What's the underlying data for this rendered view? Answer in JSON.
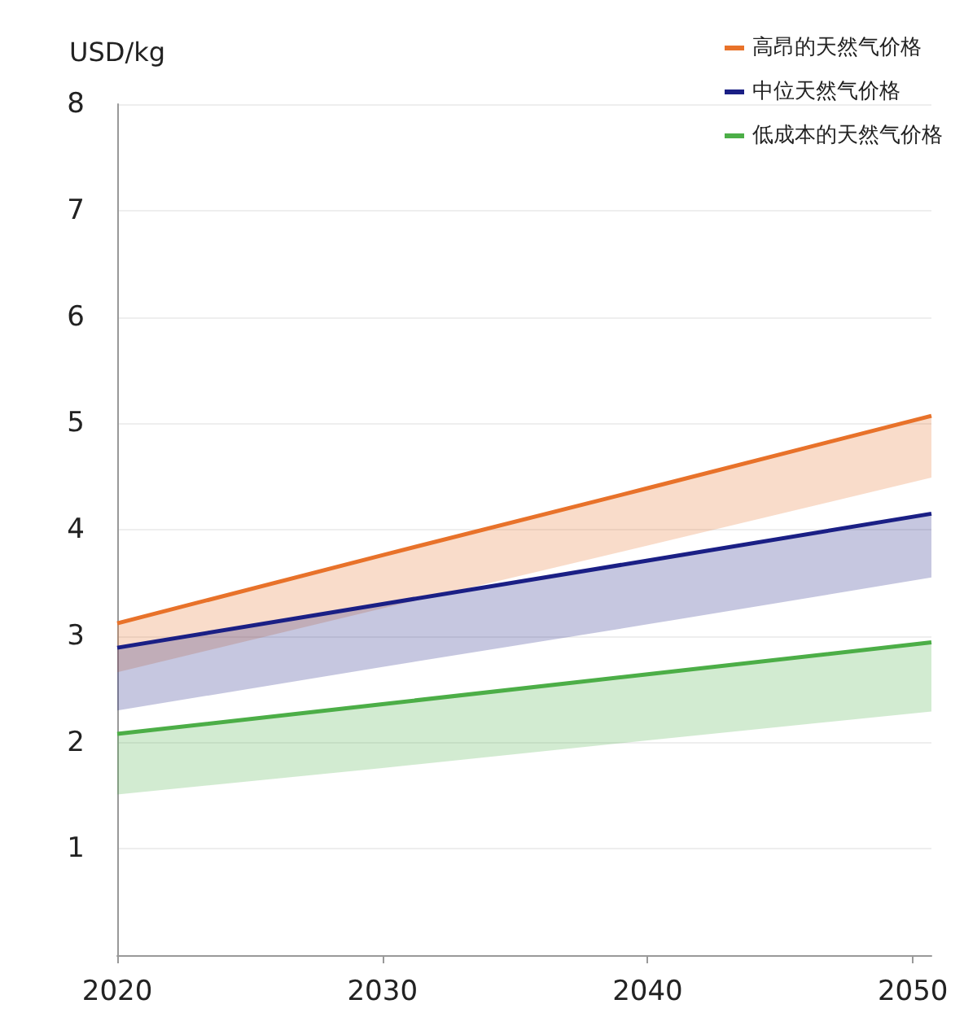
{
  "chart_data": {
    "type": "line",
    "ylabel": "USD/kg",
    "xlim": [
      2020,
      2050.7
    ],
    "xticks": [
      2020,
      2030,
      2040,
      2050
    ],
    "ylim": [
      0,
      8
    ],
    "yticks": [
      1,
      2,
      3,
      4,
      5,
      6,
      7,
      8
    ],
    "grid": "y",
    "legend": "top right",
    "marker": "none",
    "line_style": "solid",
    "series": [
      {
        "name": "高昂的天然气价格",
        "color": "#e8722a",
        "x": [
          2020,
          2030,
          2040,
          2050.7
        ],
        "values": [
          3.12,
          3.76,
          4.39,
          5.07
        ],
        "lower": [
          2.66,
          3.26,
          3.85,
          4.49
        ],
        "upper": [
          3.12,
          3.76,
          4.39,
          5.07
        ]
      },
      {
        "name": "中位天然气价格",
        "color": "#1a1f85",
        "x": [
          2020,
          2030,
          2040,
          2050.7
        ],
        "values": [
          2.89,
          3.3,
          3.71,
          4.15
        ],
        "lower": [
          2.3,
          2.71,
          3.11,
          3.55
        ],
        "upper": [
          2.89,
          3.3,
          3.71,
          4.15
        ]
      },
      {
        "name": "低成本的天然气价格",
        "color": "#4cae47",
        "x": [
          2020,
          2030,
          2040,
          2050.7
        ],
        "values": [
          2.08,
          2.36,
          2.64,
          2.94
        ],
        "lower": [
          1.51,
          1.76,
          2.02,
          2.29
        ],
        "upper": [
          2.08,
          2.36,
          2.64,
          2.94
        ]
      }
    ]
  }
}
